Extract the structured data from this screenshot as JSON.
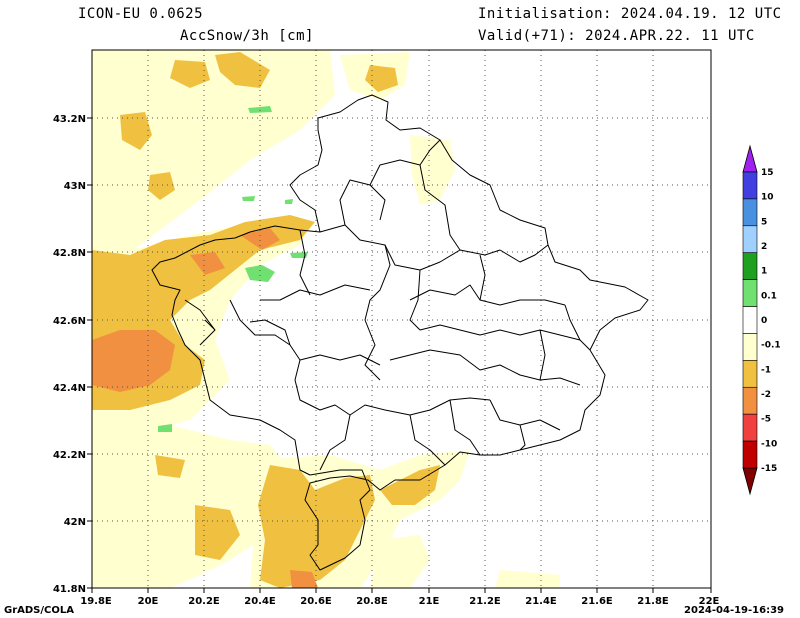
{
  "header": {
    "model": "ICON-EU 0.0625",
    "variable": "AccSnow/3h [cm]",
    "init": "Initialisation: 2024.04.19. 12 UTC",
    "valid": "Valid(+71): 2024.APR.22. 11 UTC"
  },
  "map": {
    "lat_ticks": [
      "43.2N",
      "43N",
      "42.8N",
      "42.6N",
      "42.4N",
      "42.2N",
      "42N",
      "41.8N"
    ],
    "lon_ticks": [
      "19.8E",
      "20E",
      "20.2E",
      "20.4E",
      "20.6E",
      "20.8E",
      "21E",
      "21.2E",
      "21.4E",
      "21.6E",
      "21.8E",
      "22E"
    ]
  },
  "colorbar": {
    "labels": [
      "15",
      "10",
      "5",
      "2",
      "1",
      "0.1",
      "0",
      "-0.1",
      "-1",
      "-2",
      "-5",
      "-10",
      "-15"
    ],
    "colors": [
      "#a020f0",
      "#4040e0",
      "#4a90e0",
      "#a0d0ff",
      "#20a020",
      "#70e070",
      "#ffffff",
      "#ffffd0",
      "#f0c040",
      "#f09040",
      "#f04040",
      "#c00000",
      "#800000"
    ]
  },
  "footer": {
    "left": "GrADS/COLA",
    "right": "2024-04-19-16:39"
  }
}
